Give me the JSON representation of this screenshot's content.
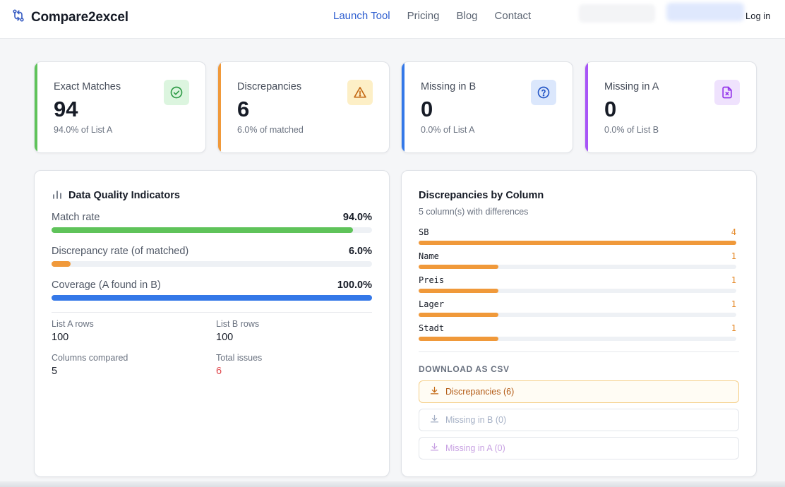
{
  "app": {
    "name": "Compare2excel"
  },
  "nav": {
    "items": [
      "Launch Tool",
      "Pricing",
      "Blog",
      "Contact"
    ],
    "active": "Launch Tool",
    "login": "Log in"
  },
  "stats": [
    {
      "label": "Exact Matches",
      "value": "94",
      "sub": "94.0% of List A",
      "icon": "check-circle-icon",
      "color": "#5fc35a"
    },
    {
      "label": "Discrepancies",
      "value": "6",
      "sub": "6.0% of matched",
      "icon": "warning-triangle-icon",
      "color": "#f0993a"
    },
    {
      "label": "Missing in B",
      "value": "0",
      "sub": "0.0% of List A",
      "icon": "question-circle-icon",
      "color": "#3478e8"
    },
    {
      "label": "Missing in A",
      "value": "0",
      "sub": "0.0% of List B",
      "icon": "file-x-icon",
      "color": "#a855f7"
    }
  ],
  "quality": {
    "title": "Data Quality Indicators",
    "metrics": [
      {
        "label": "Match rate",
        "value": "94.0%",
        "fraction": 0.94,
        "color": "#5fc35a"
      },
      {
        "label": "Discrepancy rate (of matched)",
        "value": "6.0%",
        "fraction": 0.06,
        "color": "#f0993a"
      },
      {
        "label": "Coverage (A found in B)",
        "value": "100.0%",
        "fraction": 1.0,
        "color": "#3478e8"
      }
    ],
    "summary": {
      "list_a_label": "List A rows",
      "list_a_value": "100",
      "list_b_label": "List B rows",
      "list_b_value": "100",
      "columns_label": "Columns compared",
      "columns_value": "5",
      "issues_label": "Total issues",
      "issues_value": "6"
    }
  },
  "columns": {
    "title": "Discrepancies by Column",
    "subtitle": "5 column(s) with differences",
    "items": [
      {
        "name": "SB",
        "count": "4",
        "fraction": 1.0
      },
      {
        "name": "Name",
        "count": "1",
        "fraction": 0.25
      },
      {
        "name": "Preis",
        "count": "1",
        "fraction": 0.25
      },
      {
        "name": "Lager",
        "count": "1",
        "fraction": 0.25
      },
      {
        "name": "Stadt",
        "count": "1",
        "fraction": 0.25
      }
    ],
    "download_heading": "DOWNLOAD AS CSV",
    "downloads": [
      "Discrepancies (6)",
      "Missing in B (0)",
      "Missing in A (0)"
    ]
  }
}
